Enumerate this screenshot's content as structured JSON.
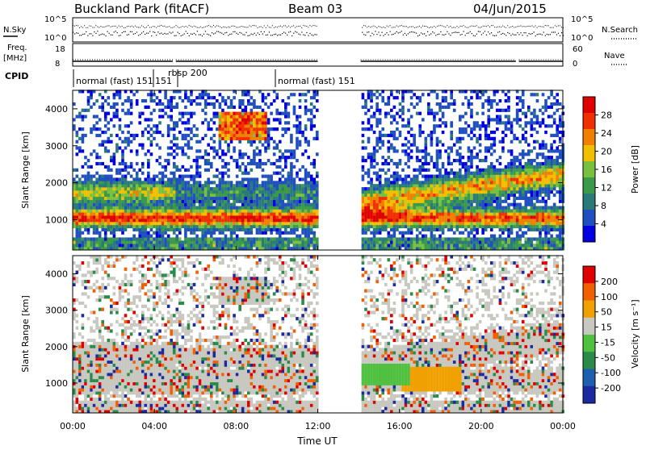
{
  "header": {
    "title": "Buckland Park (fitACF)",
    "beam": "Beam 03",
    "date": "04/Jun/2015"
  },
  "strips": {
    "nsky_label": "N.Sky",
    "nsearch_label": "N.Search",
    "count_ticks": [
      "10^5",
      "10^0"
    ],
    "freq_label": "Freq.",
    "freq_unit": "[MHz]",
    "freq_ticks": [
      "18",
      "8"
    ],
    "nave_label": "Nave",
    "nave_ticks": [
      "60",
      "0"
    ],
    "cpid_label": "CPID",
    "cpid_segments": [
      "normal (fast) 151",
      "151",
      "rbsp 200",
      "normal (fast) 151"
    ]
  },
  "panels": {
    "ylabel": "Slant Range [km]",
    "yticks": [
      "4000",
      "3000",
      "2000",
      "1000"
    ],
    "xlabel": "Time UT",
    "xticks": [
      "00:00",
      "04:00",
      "08:00",
      "12:00",
      "16:00",
      "20:00",
      "00:00"
    ]
  },
  "colorbars": {
    "power_label": "Power [dB]",
    "power_ticks": [
      "28",
      "24",
      "20",
      "16",
      "12",
      "8",
      "4"
    ],
    "velocity_label": "Velocity [m s⁻¹]",
    "velocity_ticks": [
      "200",
      "100",
      "50",
      "15",
      "-15",
      "-50",
      "-100",
      "-200"
    ]
  },
  "colors": {
    "power_scale": [
      "#0000e0",
      "#2050c0",
      "#2a7a7a",
      "#3a9a4a",
      "#7ac040",
      "#f0c000",
      "#f08000",
      "#f03000",
      "#e00000"
    ],
    "velocity_scale": [
      "#1a2aa0",
      "#1f5fb0",
      "#2a8a4a",
      "#50c040",
      "#c8c8c0",
      "#f0a000",
      "#f06000",
      "#e00000"
    ]
  },
  "chart_data": {
    "type": "heatmap",
    "x_range_hours": [
      0,
      24
    ],
    "y_range_km": [
      180,
      4500
    ],
    "data_gap_hours": [
      [
        12.0,
        14.1
      ]
    ],
    "power_scale_db": [
      0,
      32
    ],
    "velocity_scale_ms": [
      -250,
      250
    ]
  }
}
